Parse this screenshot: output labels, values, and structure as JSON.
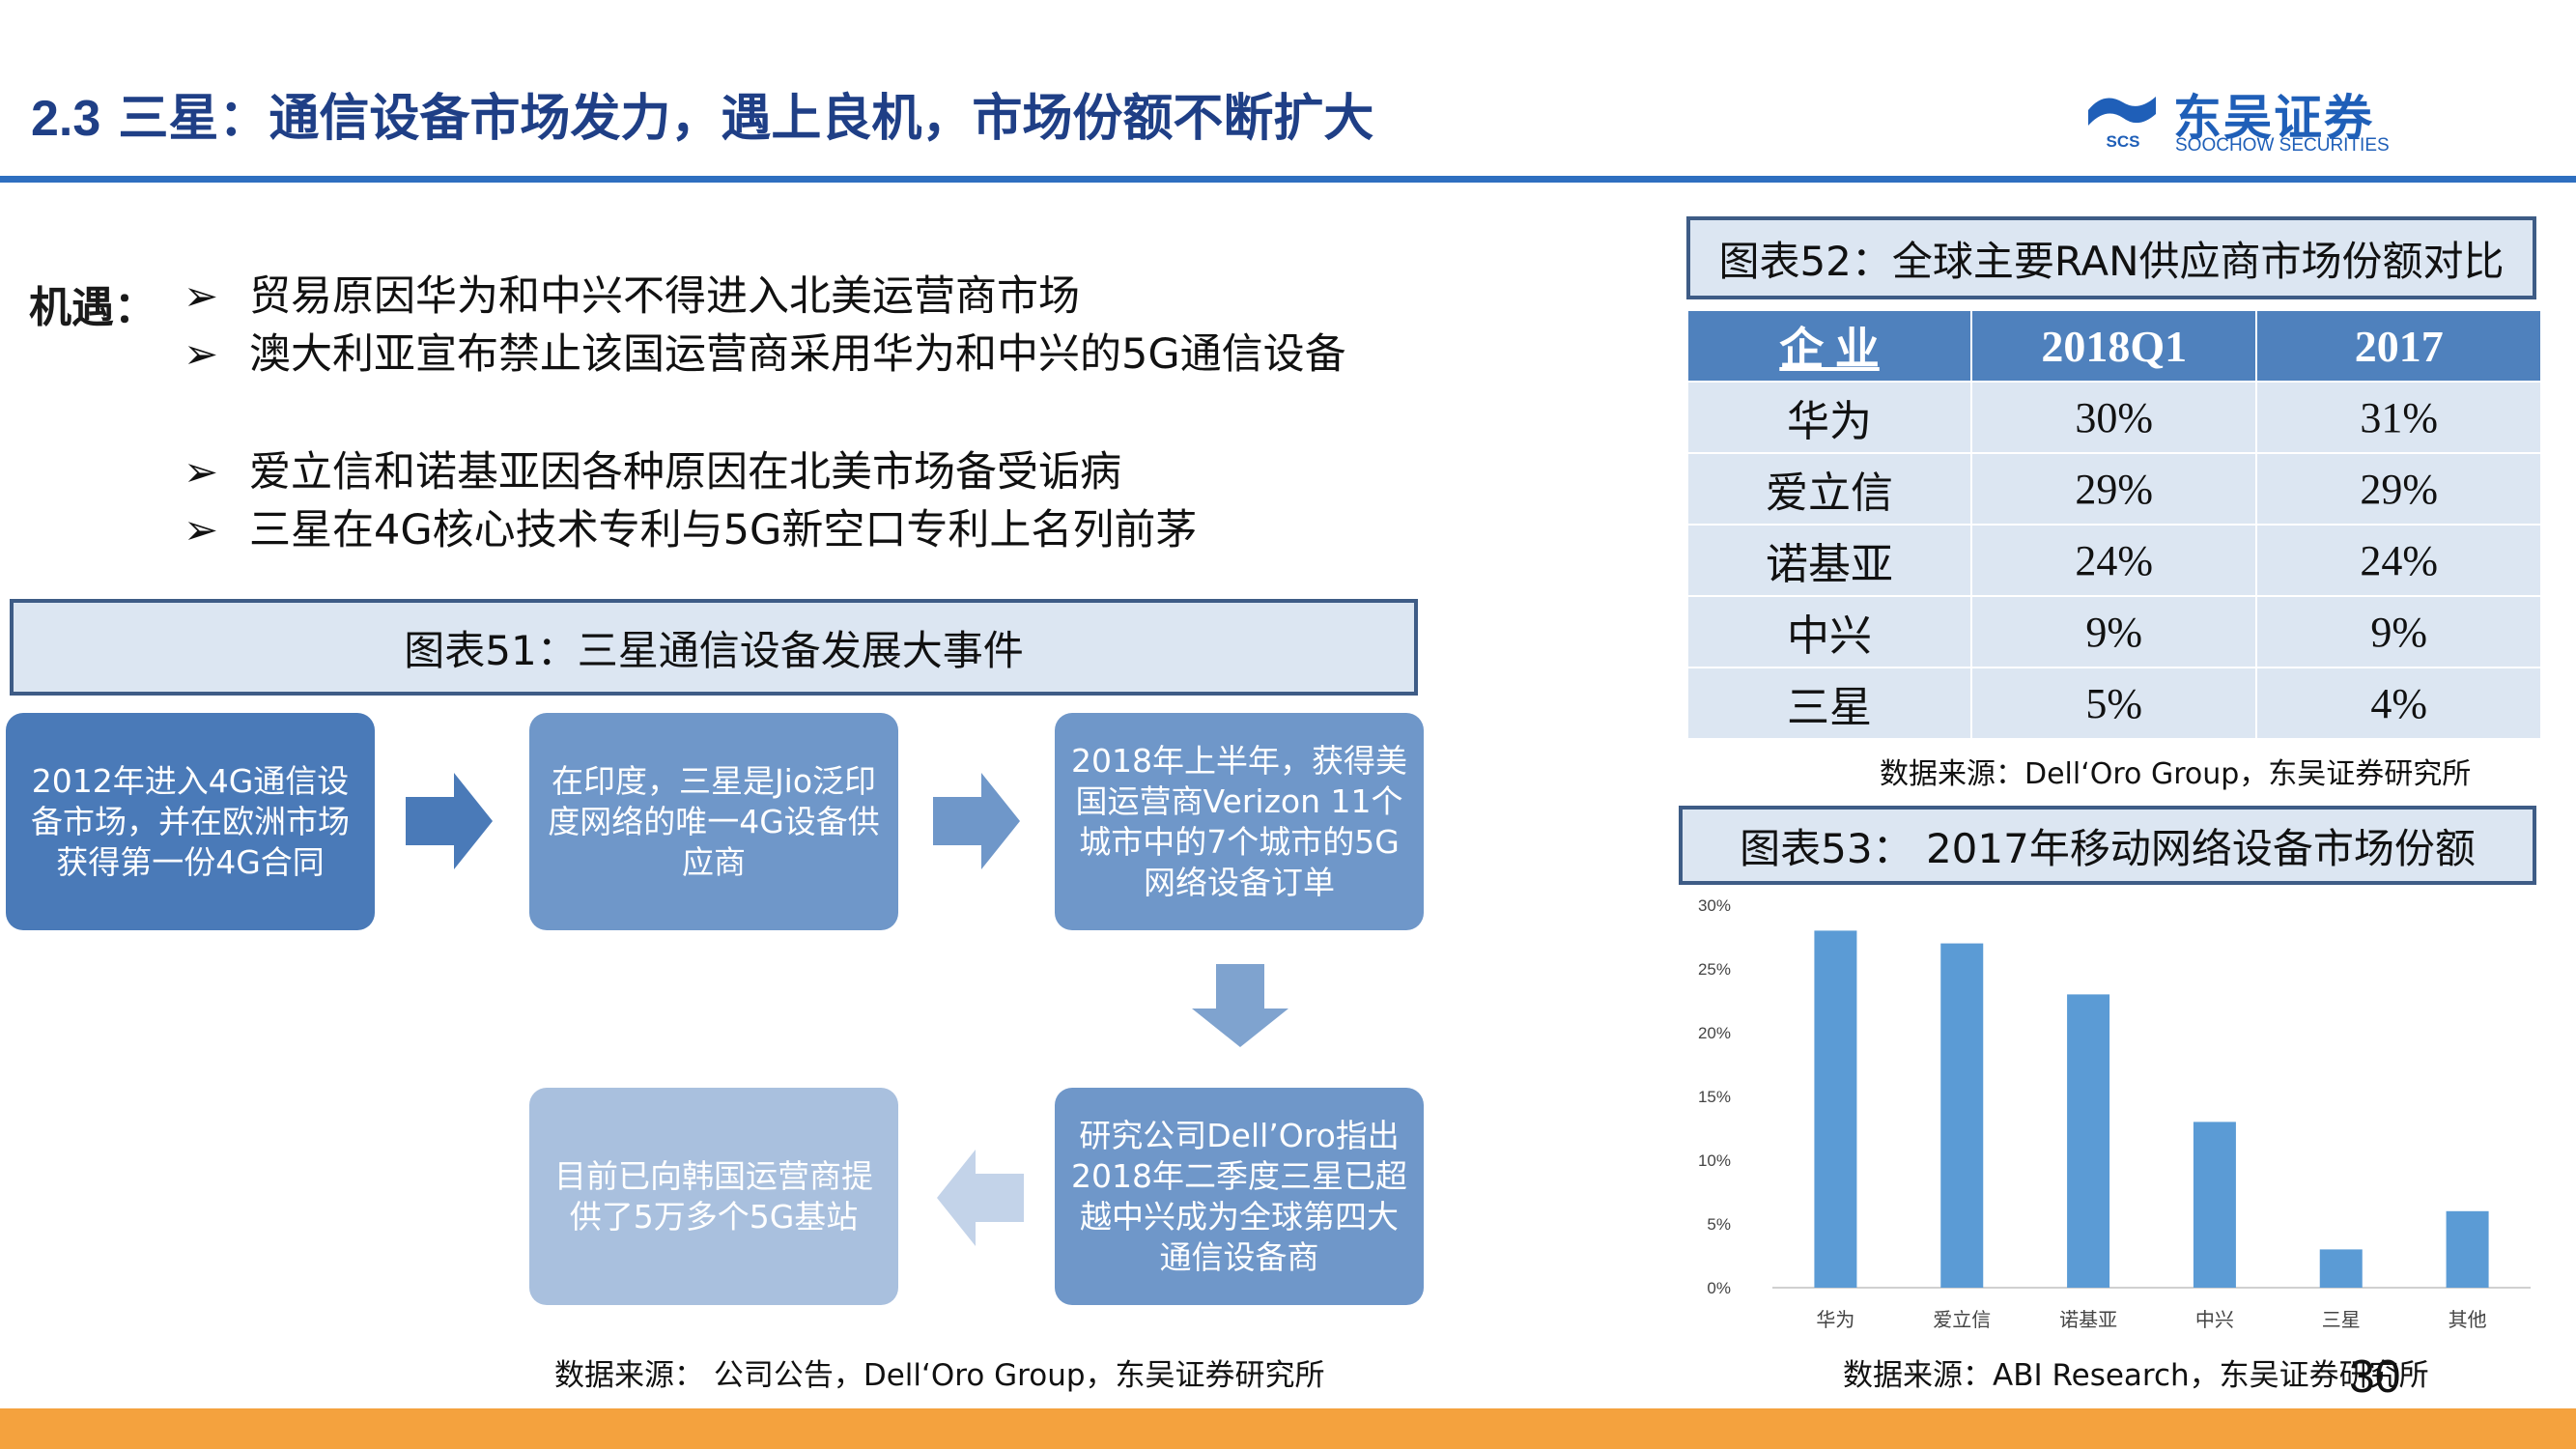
{
  "header": {
    "section_number": "2.3",
    "title": "三星：通信设备市场发力，遇上良机，市场份额不断扩大",
    "logo_cn": "东吴证券",
    "logo_en": "SOOCHOW SECURITIES",
    "logo_mark_text": "SCS"
  },
  "opportunities": {
    "label": "机遇：",
    "bullet": "➢",
    "items": [
      "贸易原因华为和中兴不得进入北美运营商市场",
      "澳大利亚宣布禁止该国运营商采用华为和中兴的5G通信设备",
      "爱立信和诺基亚因各种原因在北美市场备受诟病",
      "三星在4G核心技术专利与5G新空口专利上名列前茅"
    ]
  },
  "figure51": {
    "title": "图表51：三星通信设备发展大事件",
    "events": [
      "2012年进入4G通信设备市场，并在欧洲市场获得第一份4G合同",
      "在印度，三星是Jio泛印度网络的唯一4G设备供应商",
      "2018年上半年，获得美国运营商Verizon 11个城市中的7个城市的5G网络设备订单",
      "研究公司Dell’Oro指出2018年二季度三星已超越中兴成为全球第四大通信设备商",
      "目前已向韩国运营商提供了5万多个5G基站"
    ],
    "source": "数据来源： 公司公告，Dell‘Oro Group，东吴证券研究所"
  },
  "figure52": {
    "title": "图表52：全球主要RAN供应商市场份额对比",
    "columns": [
      "企 业",
      "2018Q1",
      "2017"
    ],
    "rows": [
      [
        "华为",
        "30%",
        "31%"
      ],
      [
        "爱立信",
        "29%",
        "29%"
      ],
      [
        "诺基亚",
        "24%",
        "24%"
      ],
      [
        "中兴",
        "9%",
        "9%"
      ],
      [
        "三星",
        "5%",
        "4%"
      ]
    ],
    "source": "数据来源：Dell‘Oro Group，东吴证券研究所"
  },
  "figure53": {
    "title": "图表53： 2017年移动网络设备市场份额",
    "source": "数据来源：ABI Research，东吴证券研究所"
  },
  "chart_data": {
    "type": "bar",
    "categories": [
      "华为",
      "爱立信",
      "诺基亚",
      "中兴",
      "三星",
      "其他"
    ],
    "values": [
      0.28,
      0.27,
      0.23,
      0.13,
      0.03,
      0.06
    ],
    "ylim": [
      0,
      0.3
    ],
    "yticks": [
      "0%",
      "5%",
      "10%",
      "15%",
      "20%",
      "25%",
      "30%"
    ],
    "grid": false,
    "bar_color": "#5b9bd5"
  },
  "footer": {
    "page_number": "30",
    "bar_color": "#f4a23e"
  }
}
